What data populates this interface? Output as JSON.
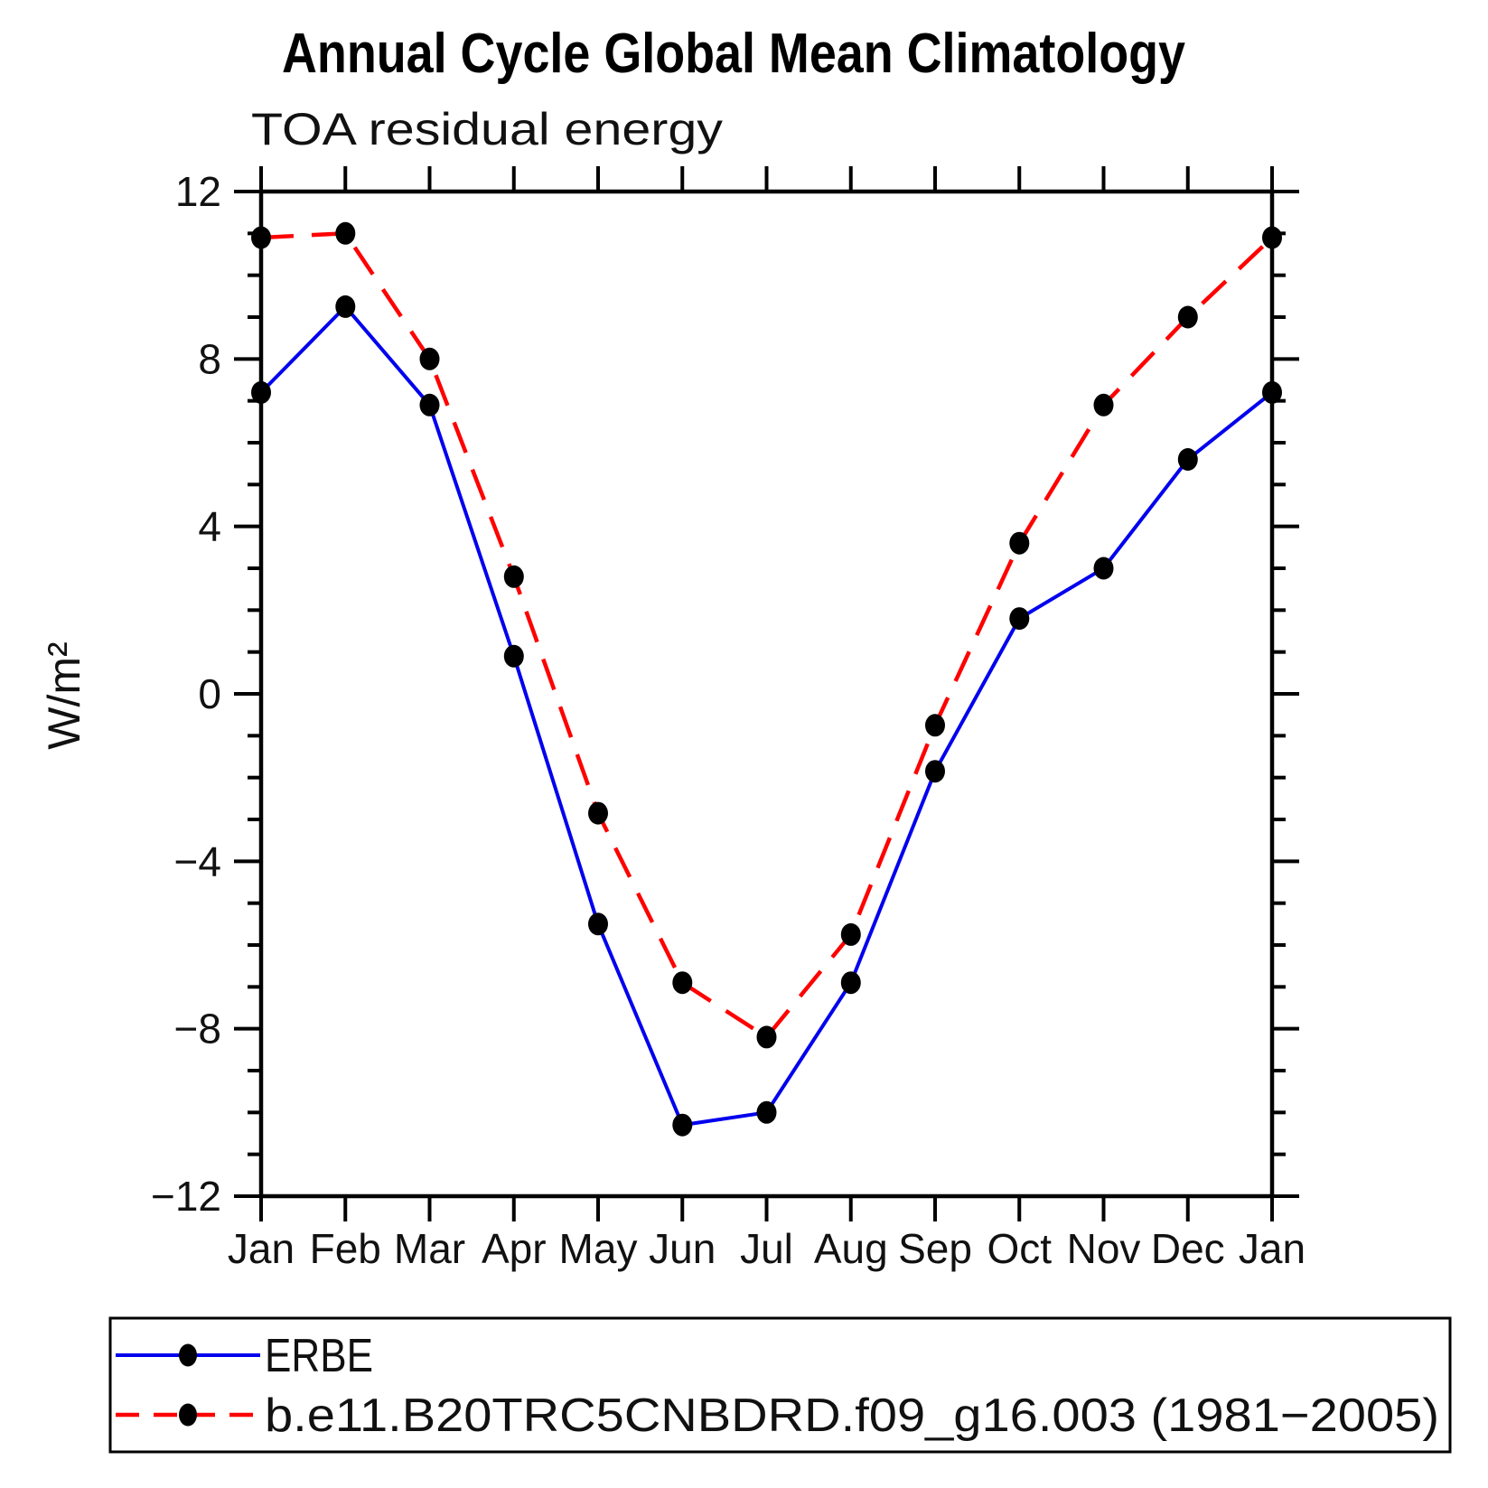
{
  "title": "Annual Cycle Global Mean Climatology",
  "subtitle": "TOA residual energy",
  "ylabel": "W/m²",
  "legend": [
    {
      "label": "ERBE",
      "color": "#0000ee",
      "style": "solid"
    },
    {
      "label": "b.e11.B20TRC5CNBDRD.f09_g16.003 (1981−2005)",
      "color": "#ff0000",
      "style": "dashed"
    }
  ],
  "chart_data": {
    "type": "line",
    "categories": [
      "Jan",
      "Feb",
      "Mar",
      "Apr",
      "May",
      "Jun",
      "Jul",
      "Aug",
      "Sep",
      "Oct",
      "Nov",
      "Dec",
      "Jan"
    ],
    "series": [
      {
        "name": "ERBE",
        "color": "#0000ee",
        "style": "solid",
        "values": [
          7.2,
          9.25,
          6.9,
          0.9,
          -5.5,
          -10.3,
          -10.0,
          -6.9,
          -1.85,
          1.8,
          3.0,
          5.6,
          7.2
        ]
      },
      {
        "name": "b.e11.B20TRC5CNBDRD.f09_g16.003 (1981−2005)",
        "color": "#ff0000",
        "style": "dashed",
        "values": [
          10.9,
          11.0,
          8.0,
          2.8,
          -2.85,
          -6.9,
          -8.2,
          -5.75,
          -0.75,
          3.6,
          6.9,
          9.0,
          10.9
        ]
      }
    ],
    "title": "Annual Cycle Global Mean Climatology",
    "subtitle": "TOA residual energy",
    "xlabel": "",
    "ylabel": "W/m²",
    "ylim": [
      -12,
      12
    ],
    "yticks_major": [
      -12,
      -8,
      -4,
      0,
      4,
      8,
      12
    ],
    "ytick_minor_step": 1,
    "grid": false,
    "legend_position": "bottom",
    "marker": "filled-circle",
    "marker_color": "#000000"
  }
}
